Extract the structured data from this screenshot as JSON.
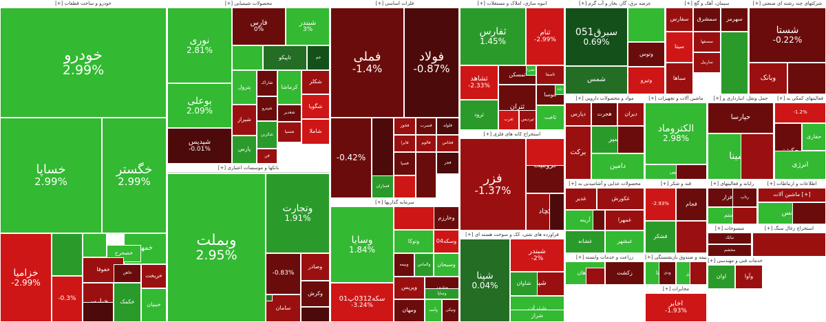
{
  "colors": {
    "g3": "#33b932",
    "g2": "#2a9b2a",
    "g1": "#236d24",
    "g0": "#14501a",
    "r0": "#4d0a0a",
    "r1": "#6b0c0c",
    "r2": "#9a1010",
    "r3": "#cf1616",
    "neutral": "#7a1f1f"
  },
  "sectors": [
    {
      "title": "خودرو و ساخت قطعات [+]",
      "tiles": [
        {
          "sym": "خودرو",
          "chg": "2.99%",
          "color": "g3"
        },
        {
          "sym": "خساپا",
          "chg": "2.99%",
          "color": "g3"
        },
        {
          "sym": "خگستر",
          "chg": "2.99%",
          "color": "g3"
        },
        {
          "sym": "خزامیا",
          "chg": "-2.99%",
          "color": "r3"
        },
        {
          "sym": "",
          "chg": "",
          "color": "g2"
        },
        {
          "sym": "",
          "chg": "",
          "color": "g3"
        },
        {
          "sym": "خمهر",
          "chg": "",
          "color": "g3"
        },
        {
          "sym": "خصحرخ",
          "chg": "",
          "color": "g3"
        },
        {
          "sym": "",
          "chg": "-0.3%",
          "color": "r3"
        },
        {
          "sym": "خفوقا",
          "chg": "",
          "color": "r2"
        },
        {
          "sym": "خپارس",
          "chg": "",
          "color": "r2"
        },
        {
          "sym": "خاهن",
          "chg": "",
          "color": "r1"
        },
        {
          "sym": "خکمک",
          "chg": "",
          "color": "g2"
        },
        {
          "sym": "خریخت",
          "chg": "",
          "color": "r2"
        },
        {
          "sym": "خبنیان",
          "chg": "",
          "color": "g3"
        },
        {
          "sym": "",
          "chg": "",
          "color": "r0"
        }
      ]
    },
    {
      "title": "محصولات شیمیایی [+]",
      "tiles": [
        {
          "sym": "نوری",
          "chg": "2.81%",
          "color": "g3"
        },
        {
          "sym": "بوعلی",
          "chg": "2.09%",
          "color": "g3"
        },
        {
          "sym": "شپدیس",
          "chg": "-0.01%",
          "color": "r0"
        },
        {
          "sym": "فارس",
          "chg": "0%",
          "color": "r1"
        },
        {
          "sym": "شبندر",
          "chg": "3%",
          "color": "g3"
        },
        {
          "sym": "",
          "chg": "",
          "color": "g3"
        },
        {
          "sym": "تاپیکو",
          "chg": "",
          "color": "g1"
        },
        {
          "sym": "جم",
          "chg": "",
          "color": "g0"
        },
        {
          "sym": "پترول",
          "chg": "",
          "color": "g3"
        },
        {
          "sym": "شاراک",
          "chg": "",
          "color": "r1"
        },
        {
          "sym": "کرماشا",
          "chg": "",
          "color": "g3"
        },
        {
          "sym": "شکلر",
          "chg": "",
          "color": "r2"
        },
        {
          "sym": "شگویا",
          "chg": "",
          "color": "r3"
        },
        {
          "sym": "شغدیر",
          "chg": "",
          "color": "r1"
        },
        {
          "sym": "شپترو",
          "chg": "",
          "color": "r1"
        },
        {
          "sym": "شیراز",
          "chg": "",
          "color": "r2"
        },
        {
          "sym": "شکربن",
          "chg": "",
          "color": "g2"
        },
        {
          "sym": "شسپا",
          "chg": "",
          "color": "r2"
        },
        {
          "sym": "پارس",
          "chg": "",
          "color": "g2"
        },
        {
          "sym": "فن",
          "chg": "",
          "color": "r2"
        },
        {
          "sym": "شاملا",
          "chg": "",
          "color": "r3"
        }
      ]
    },
    {
      "title": "بانکها و موسسات اعتباری [+]",
      "tiles": [
        {
          "sym": "وبملت",
          "chg": "2.95%",
          "color": "g3"
        },
        {
          "sym": "وتجارت",
          "chg": "1.91%",
          "color": "g2"
        },
        {
          "sym": "",
          "chg": "-0.83%",
          "color": "r1"
        },
        {
          "sym": "وصادر",
          "chg": "",
          "color": "r2"
        },
        {
          "sym": "سامان",
          "chg": "",
          "color": "r2"
        },
        {
          "sym": "وکرش",
          "chg": "",
          "color": "r1"
        },
        {
          "sym": "",
          "chg": "",
          "color": "r0"
        },
        {
          "sym": "",
          "chg": "",
          "color": "g1"
        }
      ]
    },
    {
      "title": "فلزات اساسی [+]",
      "tiles": [
        {
          "sym": "فملی",
          "chg": "-1.4%",
          "color": "r1"
        },
        {
          "sym": "فولاد",
          "chg": "-0.87%",
          "color": "r0"
        },
        {
          "sym": "",
          "chg": "-0.42%",
          "color": "r1"
        },
        {
          "sym": "",
          "chg": "",
          "color": "r0"
        },
        {
          "sym": "فخوز",
          "chg": "",
          "color": "r2"
        },
        {
          "sym": "فسرب",
          "chg": "",
          "color": "r1"
        },
        {
          "sym": "فلوله",
          "chg": "",
          "color": "r0"
        },
        {
          "sym": "فایرا",
          "chg": "",
          "color": "r2"
        },
        {
          "sym": "فالوم",
          "chg": "",
          "color": "r2"
        },
        {
          "sym": "فخاس",
          "chg": "",
          "color": "r2"
        },
        {
          "sym": "فجر",
          "chg": "",
          "color": "r0"
        },
        {
          "sym": "فسپا",
          "chg": "",
          "color": "r1"
        },
        {
          "sym": "فسازان",
          "chg": "",
          "color": "g2"
        },
        {
          "sym": "",
          "chg": "",
          "color": "r3"
        },
        {
          "sym": "",
          "chg": "",
          "color": "r1"
        }
      ]
    },
    {
      "title": "سرمایه گذاریها [+]",
      "tiles": [
        {
          "sym": "وسایا",
          "chg": "1.84%",
          "color": "g3"
        },
        {
          "sym": "سکه0312پ01",
          "chg": "-3.24%",
          "color": "r3"
        },
        {
          "sym": "",
          "chg": "",
          "color": "r3"
        },
        {
          "sym": "وخارزم",
          "chg": "",
          "color": "r1"
        },
        {
          "sym": "وتوکا",
          "chg": "",
          "color": "g3"
        },
        {
          "sym": "وسکه04",
          "chg": "",
          "color": "r3"
        },
        {
          "sym": "وبیمه",
          "chg": "",
          "color": "r1"
        },
        {
          "sym": "والماس",
          "chg": "",
          "color": "g2"
        },
        {
          "sym": "وسبحان",
          "chg": "",
          "color": "g3"
        },
        {
          "sym": "وپریس",
          "chg": "",
          "color": "r2"
        },
        {
          "sym": "وشهر",
          "chg": "",
          "color": "r1"
        },
        {
          "sym": "ومهان",
          "chg": "",
          "color": "r1"
        },
        {
          "sym": "وآمید",
          "chg": "",
          "color": "g3"
        },
        {
          "sym": "ونیکی",
          "chg": "",
          "color": "r1"
        },
        {
          "sym": "وساپا",
          "chg": "",
          "color": "g2"
        }
      ]
    },
    {
      "title": "انبوه سازی، املاک و مستغلات [+]",
      "tiles": [
        {
          "sym": "ثفارس",
          "chg": "1.45%",
          "color": "g2"
        },
        {
          "sym": "ثنام",
          "chg": "-2.99%",
          "color": "r3"
        },
        {
          "sym": "ثشاهد",
          "chg": "-2.33%",
          "color": "r3"
        },
        {
          "sym": "ثمسکن",
          "chg": "",
          "color": "r1"
        },
        {
          "sym": "ثاصفا",
          "chg": "",
          "color": "r2"
        },
        {
          "sym": "ثرود",
          "chg": "",
          "color": "g2"
        },
        {
          "sym": "ثتران",
          "chg": "",
          "color": "r1"
        },
        {
          "sym": "ثنوسا",
          "chg": "",
          "color": "r1"
        },
        {
          "sym": "ثاخت",
          "chg": "",
          "color": "g3"
        },
        {
          "sym": "ثغرب",
          "chg": "",
          "color": "r3"
        },
        {
          "sym": "ثپردیس",
          "chg": "",
          "color": "r2"
        },
        {
          "sym": "ثاباد",
          "chg": "",
          "color": "g3"
        },
        {
          "sym": "ثعمرا",
          "chg": "",
          "color": "g3"
        }
      ]
    },
    {
      "title": "استخراج کانه های فلزی [+]",
      "tiles": [
        {
          "sym": "فزر",
          "chg": "-1.37%",
          "color": "r2"
        },
        {
          "sym": "کرومیت",
          "chg": "",
          "color": "r1"
        },
        {
          "sym": "کطبس",
          "chg": "",
          "color": "r1"
        },
        {
          "sym": "کچاد",
          "chg": "",
          "color": "r2"
        },
        {
          "sym": "",
          "chg": "",
          "color": "r3"
        },
        {
          "sym": "",
          "chg": "",
          "color": "r0"
        }
      ]
    },
    {
      "title": "فراورده های نفتی، کک و سوخت هسته ای [+]",
      "tiles": [
        {
          "sym": "شپنا",
          "chg": "0.04%",
          "color": "g1"
        },
        {
          "sym": "شبندر",
          "chg": "-2%",
          "color": "r3"
        },
        {
          "sym": "شپاس",
          "chg": "",
          "color": "r2"
        },
        {
          "sym": "شتران",
          "chg": "",
          "color": "g3"
        },
        {
          "sym": "شراز",
          "chg": "",
          "color": "g3"
        },
        {
          "sym": "شاوان",
          "chg": "",
          "color": "g2"
        }
      ]
    },
    {
      "title": "عرضه برق، گاز، بخار و آب گرم [+]",
      "tiles": [
        {
          "sym": "سبرق051",
          "chg": "0.69%",
          "color": "g0"
        },
        {
          "sym": "",
          "chg": "",
          "color": "g3"
        },
        {
          "sym": "",
          "chg": "",
          "color": "r1"
        },
        {
          "sym": "وتوس",
          "chg": "",
          "color": "r1"
        },
        {
          "sym": "وتیرو",
          "chg": "",
          "color": "r3"
        },
        {
          "sym": "شمس",
          "chg": "",
          "color": "g1"
        }
      ]
    },
    {
      "title": "مواد و محصولات دارویی [+]",
      "tiles": [
        {
          "sym": "دپارس",
          "chg": "",
          "color": "r2"
        },
        {
          "sym": "هجرت",
          "chg": "",
          "color": "r1"
        },
        {
          "sym": "دیران",
          "chg": "",
          "color": "r2"
        },
        {
          "sym": "دکسیر",
          "chg": "",
          "color": "g2"
        },
        {
          "sym": "برکت",
          "chg": "",
          "color": "r2"
        },
        {
          "sym": "دامین",
          "chg": "",
          "color": "g3"
        },
        {
          "sym": "",
          "chg": "",
          "color": "r1"
        },
        {
          "sym": "",
          "chg": "",
          "color": "g3"
        }
      ]
    },
    {
      "title": "ماشین آلات و تجهیزات [+]",
      "tiles": [
        {
          "sym": "الکتروماد",
          "chg": "2.98%",
          "color": "g3"
        },
        {
          "sym": "تپمپی",
          "chg": "",
          "color": "g3"
        },
        {
          "sym": "",
          "chg": "",
          "color": "r1"
        }
      ]
    },
    {
      "title": "محصولات غذایی و آشامیدنی به [+]",
      "tiles": [
        {
          "sym": "غدیر",
          "chg": "",
          "color": "r2"
        },
        {
          "sym": "آرینه",
          "chg": "",
          "color": "g3"
        },
        {
          "sym": "غکورش",
          "chg": "",
          "color": "r2"
        },
        {
          "sym": "غمهرا",
          "chg": "",
          "color": "r2"
        },
        {
          "sym": "غبشهر",
          "chg": "",
          "color": "g3"
        },
        {
          "sym": "غشانه",
          "chg": "",
          "color": "g2"
        },
        {
          "sym": "",
          "chg": "",
          "color": "r1"
        }
      ]
    },
    {
      "title": "قند و شکر [+]",
      "tiles": [
        {
          "sym": "",
          "chg": "-2.93%",
          "color": "r3"
        },
        {
          "sym": "قشکر",
          "chg": "",
          "color": "g2"
        },
        {
          "sym": "قجام",
          "chg": "",
          "color": "r1"
        },
        {
          "sym": "",
          "chg": "",
          "color": "r2"
        }
      ]
    },
    {
      "title": "زراعت و خدمات وابسته [+]",
      "tiles": [
        {
          "sym": "زماهان",
          "chg": "",
          "color": "g3"
        },
        {
          "sym": "زکشت",
          "chg": "",
          "color": "r1"
        },
        {
          "sym": "",
          "chg": "",
          "color": "r2"
        }
      ]
    },
    {
      "title": "مخابرات [+]",
      "tiles": [
        {
          "sym": "اخابر",
          "chg": "-1.93%",
          "color": "r3"
        }
      ]
    },
    {
      "title": "سیمان، آهک و گچ [+]",
      "tiles": [
        {
          "sym": "سفارس",
          "chg": "",
          "color": "r2"
        },
        {
          "sym": "سمشرق",
          "chg": "",
          "color": "r1"
        },
        {
          "sym": "سهرمز",
          "chg": "",
          "color": "r1"
        },
        {
          "sym": "سصفها",
          "chg": "",
          "color": "r2"
        },
        {
          "sym": "سیتا",
          "chg": "",
          "color": "r3"
        },
        {
          "sym": "ساربیل",
          "chg": "",
          "color": "r2"
        },
        {
          "sym": "سباها",
          "chg": "",
          "color": "r2"
        },
        {
          "sym": "",
          "chg": "",
          "color": "g2"
        }
      ]
    },
    {
      "title": "شرکتهای چند رشته ای صنعتی [+]",
      "tiles": [
        {
          "sym": "شستا",
          "chg": "-0.22%",
          "color": "r1"
        },
        {
          "sym": "وبانک",
          "chg": "",
          "color": "r2"
        },
        {
          "sym": "",
          "chg": "",
          "color": "r1"
        }
      ]
    },
    {
      "title": "فعالیتهای کمکی به [+]",
      "tiles": [
        {
          "sym": "",
          "chg": "-1.2%",
          "color": "r3"
        },
        {
          "sym": "حکشتی",
          "chg": "",
          "color": "r1"
        },
        {
          "sym": "حفاری",
          "chg": "",
          "color": "g3"
        },
        {
          "sym": "حتوکا",
          "chg": "",
          "color": "r2"
        },
        {
          "sym": "انرژی",
          "chg": "",
          "color": "g3"
        }
      ]
    },
    {
      "title": "حمل ونقل، انبارداری و [+]",
      "tiles": [
        {
          "sym": "حپارسا",
          "chg": "",
          "color": "r1"
        },
        {
          "sym": "حسینا",
          "chg": "",
          "color": "g3"
        },
        {
          "sym": "",
          "chg": "",
          "color": "r2"
        }
      ]
    },
    {
      "title": "رایانه و فعالیتهای [+]",
      "tiles": [
        {
          "sym": "فن افزار",
          "chg": "",
          "color": "r1"
        },
        {
          "sym": "سیستم",
          "chg": "",
          "color": "g3"
        },
        {
          "sym": "رتاپ",
          "chg": "",
          "color": "r1"
        },
        {
          "sym": "",
          "chg": "",
          "color": "r2"
        }
      ]
    },
    {
      "title": "اطلاعات و ارتباطات [+]",
      "tiles": [
        {
          "sym": "ماشین آلات [+]",
          "chg": "",
          "color": "r2"
        },
        {
          "sym": "بترانس",
          "chg": "",
          "color": "g3"
        },
        {
          "sym": "",
          "chg": "",
          "color": "r1"
        }
      ]
    },
    {
      "title": "بیمه و صندوق بازنشستگی [+]",
      "tiles": [
        {
          "sym": "وتانا",
          "chg": "",
          "color": "g3"
        },
        {
          "sym": "البرز",
          "chg": "",
          "color": "g3"
        },
        {
          "sym": "ودی",
          "chg": "",
          "color": "r1"
        },
        {
          "sym": "",
          "chg": "",
          "color": "r2"
        }
      ]
    },
    {
      "title": "منسوجات [+]",
      "tiles": [
        {
          "sym": "نبابک",
          "chg": "",
          "color": "r1"
        },
        {
          "sym": "مخشم",
          "chg": "",
          "color": "r1"
        }
      ]
    },
    {
      "title": "استخراج زغال سنگ [+]",
      "tiles": [
        {
          "sym": "",
          "chg": "",
          "color": "r2"
        }
      ]
    },
    {
      "title": "خدمات فنی و مهندسی [+]",
      "tiles": [
        {
          "sym": "اوان",
          "chg": "",
          "color": "g2"
        },
        {
          "sym": "وآوا",
          "chg": "",
          "color": "r2"
        }
      ]
    },
    {
      "title": "کاشی و سرامیک [+]",
      "tiles": [
        {
          "sym": "کهرم",
          "chg": "",
          "color": "g3"
        },
        {
          "sym": "کسعدی",
          "chg": "",
          "color": "r2"
        }
      ]
    }
  ]
}
